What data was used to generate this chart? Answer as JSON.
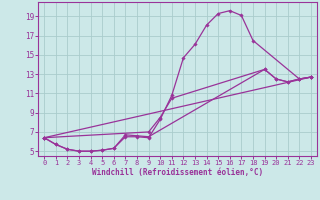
{
  "bg_color": "#cce8e8",
  "grid_color": "#aacccc",
  "line_color": "#993399",
  "marker_color": "#993399",
  "xlabel": "Windchill (Refroidissement éolien,°C)",
  "xlabel_color": "#993399",
  "tick_color": "#993399",
  "xlim": [
    -0.5,
    23.5
  ],
  "ylim": [
    4.5,
    20.5
  ],
  "xticks": [
    0,
    1,
    2,
    3,
    4,
    5,
    6,
    7,
    8,
    9,
    10,
    11,
    12,
    13,
    14,
    15,
    16,
    17,
    18,
    19,
    20,
    21,
    22,
    23
  ],
  "yticks": [
    5,
    7,
    9,
    11,
    13,
    15,
    17,
    19
  ],
  "series1": [
    [
      0,
      6.4
    ],
    [
      1,
      5.7
    ],
    [
      2,
      5.2
    ],
    [
      3,
      5.0
    ],
    [
      4,
      5.0
    ],
    [
      5,
      5.1
    ],
    [
      6,
      5.3
    ],
    [
      7,
      6.5
    ],
    [
      8,
      6.5
    ],
    [
      9,
      6.4
    ],
    [
      10,
      8.3
    ],
    [
      11,
      10.8
    ],
    [
      12,
      14.7
    ],
    [
      13,
      16.1
    ],
    [
      14,
      18.1
    ],
    [
      15,
      19.3
    ],
    [
      16,
      19.6
    ],
    [
      17,
      19.1
    ],
    [
      18,
      16.5
    ],
    [
      22,
      12.5
    ],
    [
      23,
      12.7
    ]
  ],
  "series2": [
    [
      0,
      6.4
    ],
    [
      9,
      7.0
    ],
    [
      10,
      8.5
    ],
    [
      11,
      10.5
    ],
    [
      19,
      13.5
    ],
    [
      20,
      12.5
    ],
    [
      21,
      12.2
    ],
    [
      22,
      12.5
    ],
    [
      23,
      12.7
    ]
  ],
  "series3": [
    [
      0,
      6.4
    ],
    [
      1,
      5.7
    ],
    [
      2,
      5.2
    ],
    [
      3,
      5.0
    ],
    [
      4,
      5.0
    ],
    [
      5,
      5.1
    ],
    [
      6,
      5.3
    ],
    [
      7,
      6.7
    ],
    [
      8,
      6.6
    ],
    [
      9,
      6.5
    ],
    [
      19,
      13.5
    ],
    [
      20,
      12.5
    ],
    [
      21,
      12.2
    ],
    [
      22,
      12.5
    ],
    [
      23,
      12.7
    ]
  ],
  "series4": [
    [
      0,
      6.4
    ],
    [
      23,
      12.7
    ]
  ]
}
